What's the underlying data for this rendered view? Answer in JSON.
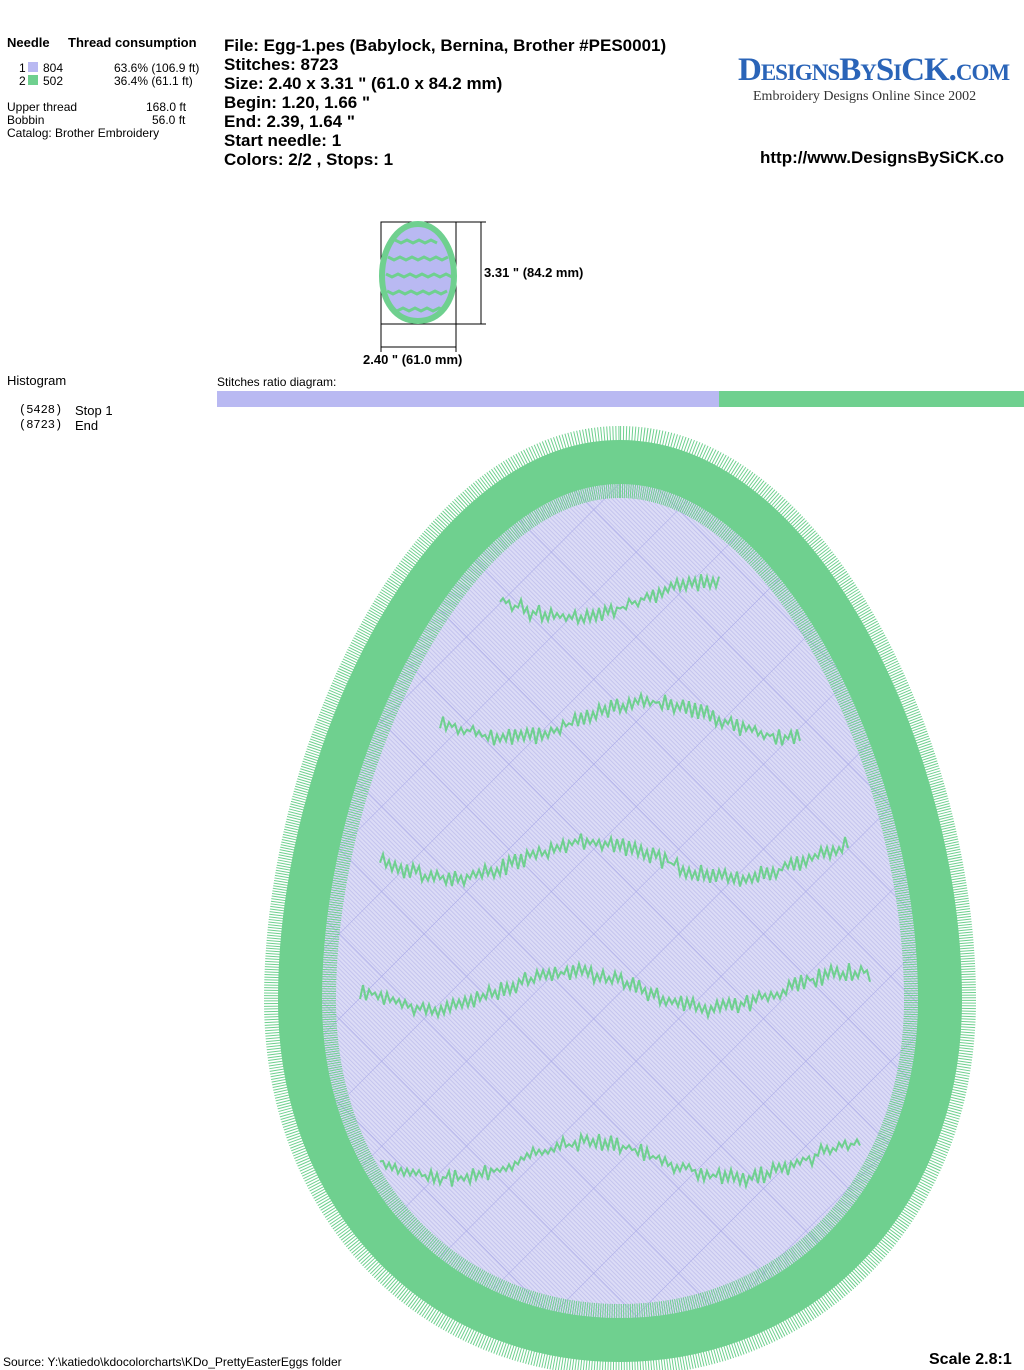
{
  "threads": {
    "needle_header": "Needle",
    "consumption_header": "Thread consumption",
    "rows": [
      {
        "needle": "1",
        "code": "804",
        "usage": "63.6% (106.9 ft)",
        "color": "#b9b9f2"
      },
      {
        "needle": "2",
        "code": "502",
        "usage": "36.4% (61.1 ft)",
        "color": "#6fd08f"
      }
    ],
    "upper_label": "Upper thread",
    "upper_value": "168.0 ft",
    "bobbin_label": "Bobbin",
    "bobbin_value": "56.0 ft",
    "catalog": "Catalog: Brother Embroidery"
  },
  "info": [
    "File: Egg-1.pes  (Babylock, Bernina, Brother #PES0001)",
    "Stitches: 8723",
    "Size: 2.40 x 3.31 \" (61.0 x 84.2 mm)",
    "Begin: 1.20, 1.66 \"",
    "End: 2.39, 1.64 \"",
    "Start needle: 1",
    "Colors: 2/2 , Stops: 1"
  ],
  "logo": {
    "name": "DesignsBySiCK.com",
    "tagline": "Embroidery Designs Online Since 2002",
    "url": "http://www.DesignsBySiCK.co"
  },
  "thumbnail": {
    "height_label": "3.31 \" (84.2 mm)",
    "width_label": "2.40 \" (61.0 mm)"
  },
  "histogram": {
    "title": "Histogram",
    "entries": [
      {
        "count": "(5428)",
        "label": "Stop 1"
      },
      {
        "count": "(8723)",
        "label": "End"
      }
    ]
  },
  "ratio_label": "Stitches ratio diagram:",
  "footer": {
    "source": "Source: Y:\\katiedo\\kdocolorcharts\\KDo_PrettyEasterEggs folder",
    "scale": "Scale 2.8:1"
  }
}
